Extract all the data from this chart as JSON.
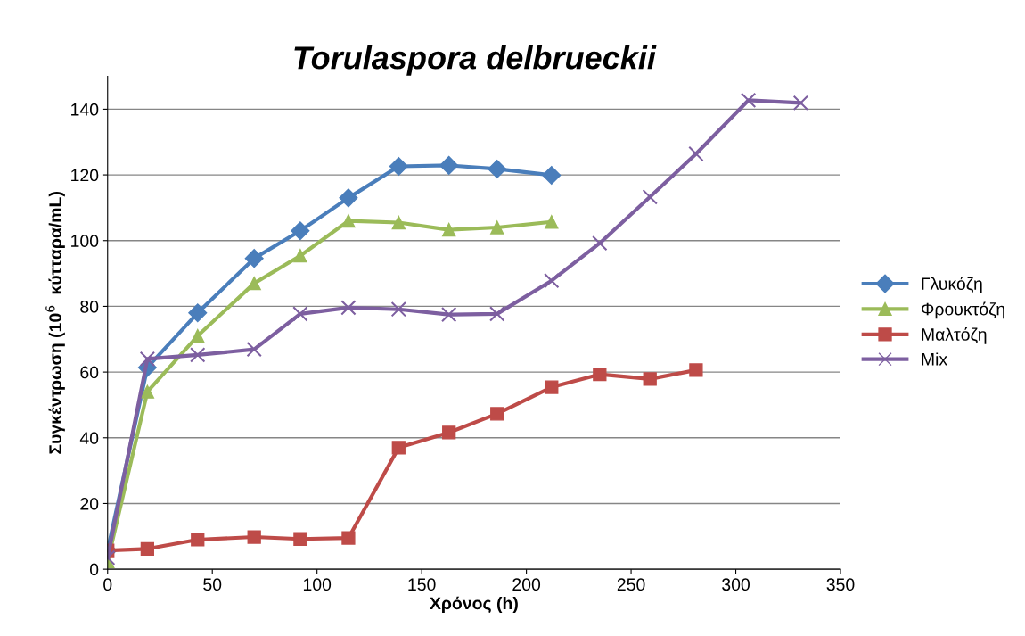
{
  "chart_data": {
    "type": "line",
    "title": "Torulaspora delbrueckii",
    "xlabel": "Χρόνος (h)",
    "ylabel": "Συγκέντρωση (10$^{6}$  κύτταρα/mL)",
    "xlim": [
      0,
      350
    ],
    "xticks": [
      0,
      50,
      100,
      150,
      200,
      250,
      300,
      350
    ],
    "ylim": [
      0,
      150
    ],
    "yticks": [
      0,
      20,
      40,
      60,
      80,
      100,
      120,
      140
    ],
    "grid": "y",
    "legend": "right",
    "series": [
      {
        "name": "Γλυκόζη",
        "color": "#4a7ebb",
        "marker": "diamond",
        "x": [
          0,
          19,
          43,
          70,
          92,
          115,
          139,
          163,
          186,
          212
        ],
        "values": [
          5.7,
          61.4,
          78,
          94.6,
          103,
          113,
          122.6,
          122.9,
          121.8,
          119.9
        ]
      },
      {
        "name": "Φρουκτόζη",
        "color": "#9bbb59",
        "marker": "triangle",
        "x": [
          0,
          19,
          43,
          70,
          92,
          115,
          139,
          163,
          186,
          212
        ],
        "values": [
          2.4,
          54,
          71,
          87,
          95.4,
          106,
          105.5,
          103.3,
          104,
          105.7
        ]
      },
      {
        "name": "Μαλτόζη",
        "color": "#be4b48",
        "marker": "square",
        "x": [
          0,
          19,
          43,
          70,
          92,
          115,
          139,
          163,
          186,
          212,
          235,
          259,
          281
        ],
        "values": [
          5.7,
          6.2,
          9,
          9.8,
          9.2,
          9.5,
          37,
          41.6,
          47.3,
          55.4,
          59.3,
          57.9,
          60.6
        ]
      },
      {
        "name": "Mix",
        "color": "#7d5fa0",
        "marker": "cross",
        "x": [
          0,
          19,
          43,
          70,
          92,
          115,
          139,
          163,
          186,
          212,
          235,
          259,
          281,
          306,
          331
        ],
        "values": [
          3.5,
          64,
          65.2,
          66.9,
          77.7,
          79.6,
          79.1,
          77.5,
          77.7,
          87.8,
          99.2,
          113.3,
          126.4,
          142.7,
          141.9
        ]
      }
    ]
  }
}
